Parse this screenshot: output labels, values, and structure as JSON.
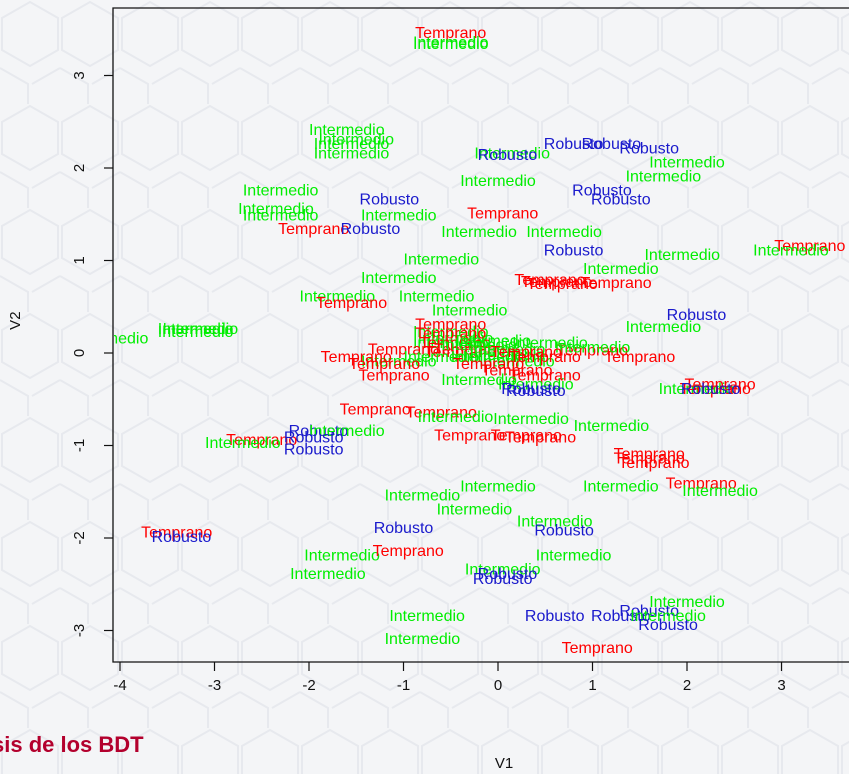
{
  "slide": {
    "caption": "sis de los BDT"
  },
  "colors": {
    "Temprano": "#ff0000",
    "Intermedio": "#00ee00",
    "Robusto": "#1a1acc",
    "background": "#f4f5f7",
    "axis": "#111111"
  },
  "chart_data": {
    "type": "scatter",
    "title": "",
    "xlabel": "V1",
    "ylabel": "V2",
    "xlim": [
      -4,
      3.6
    ],
    "ylim": [
      -3.4,
      3.7
    ],
    "xticks": [
      "-4",
      "-3",
      "-2",
      "-1",
      "0",
      "1",
      "2",
      "3"
    ],
    "yticks": [
      "-3",
      "-2",
      "-1",
      "0",
      "1",
      "2",
      "3"
    ],
    "grid": false,
    "legend": "none",
    "marker": "text label",
    "points": [
      {
        "x": -0.5,
        "y": 3.45,
        "label": "Temprano"
      },
      {
        "x": -0.5,
        "y": 3.35,
        "label": "Intermedio"
      },
      {
        "x": -0.5,
        "y": 3.33,
        "label": "Intermedio"
      },
      {
        "x": -1.6,
        "y": 2.4,
        "label": "Intermedio"
      },
      {
        "x": -1.5,
        "y": 2.3,
        "label": "Intermedio"
      },
      {
        "x": -1.55,
        "y": 2.25,
        "label": "Intermedio"
      },
      {
        "x": -1.55,
        "y": 2.15,
        "label": "Intermedio"
      },
      {
        "x": 0.8,
        "y": 2.25,
        "label": "Robusto"
      },
      {
        "x": 1.2,
        "y": 2.25,
        "label": "Robusto"
      },
      {
        "x": 1.6,
        "y": 2.2,
        "label": "Robusto"
      },
      {
        "x": 0.15,
        "y": 2.15,
        "label": "Intermedio"
      },
      {
        "x": 0.1,
        "y": 2.13,
        "label": "Robusto"
      },
      {
        "x": 2.0,
        "y": 2.05,
        "label": "Intermedio"
      },
      {
        "x": 1.75,
        "y": 1.9,
        "label": "Intermedio"
      },
      {
        "x": -2.3,
        "y": 1.75,
        "label": "Intermedio"
      },
      {
        "x": 0.0,
        "y": 1.85,
        "label": "Intermedio"
      },
      {
        "x": 1.1,
        "y": 1.75,
        "label": "Robusto"
      },
      {
        "x": -1.15,
        "y": 1.65,
        "label": "Robusto"
      },
      {
        "x": 1.3,
        "y": 1.65,
        "label": "Robusto"
      },
      {
        "x": -2.35,
        "y": 1.55,
        "label": "Intermedio"
      },
      {
        "x": -2.3,
        "y": 1.48,
        "label": "Intermedio"
      },
      {
        "x": -1.05,
        "y": 1.48,
        "label": "Intermedio"
      },
      {
        "x": 0.05,
        "y": 1.5,
        "label": "Temprano"
      },
      {
        "x": -1.95,
        "y": 1.33,
        "label": "Temprano"
      },
      {
        "x": -1.35,
        "y": 1.33,
        "label": "Robusto"
      },
      {
        "x": -0.2,
        "y": 1.3,
        "label": "Intermedio"
      },
      {
        "x": 0.7,
        "y": 1.3,
        "label": "Intermedio"
      },
      {
        "x": 0.8,
        "y": 1.1,
        "label": "Robusto"
      },
      {
        "x": -0.6,
        "y": 1.0,
        "label": "Intermedio"
      },
      {
        "x": 1.95,
        "y": 1.05,
        "label": "Intermedio"
      },
      {
        "x": 3.3,
        "y": 1.15,
        "label": "Temprano"
      },
      {
        "x": 3.1,
        "y": 1.1,
        "label": "Intermedio"
      },
      {
        "x": 1.3,
        "y": 0.9,
        "label": "Intermedio"
      },
      {
        "x": -1.05,
        "y": 0.8,
        "label": "Intermedio"
      },
      {
        "x": 0.55,
        "y": 0.78,
        "label": "Temprano"
      },
      {
        "x": 0.62,
        "y": 0.76,
        "label": "Temprano"
      },
      {
        "x": 0.68,
        "y": 0.74,
        "label": "Temprano"
      },
      {
        "x": 1.25,
        "y": 0.75,
        "label": "Temprano"
      },
      {
        "x": -1.7,
        "y": 0.6,
        "label": "Intermedio"
      },
      {
        "x": -0.65,
        "y": 0.6,
        "label": "Intermedio"
      },
      {
        "x": -1.55,
        "y": 0.53,
        "label": "Temprano"
      },
      {
        "x": -0.3,
        "y": 0.45,
        "label": "Intermedio"
      },
      {
        "x": 2.1,
        "y": 0.4,
        "label": "Robusto"
      },
      {
        "x": 1.75,
        "y": 0.27,
        "label": "Intermedio"
      },
      {
        "x": -4.1,
        "y": 0.15,
        "label": "Intermedio"
      },
      {
        "x": -3.2,
        "y": 0.25,
        "label": "Intermedio"
      },
      {
        "x": -3.2,
        "y": 0.22,
        "label": "Intermedio"
      },
      {
        "x": -3.15,
        "y": 0.25,
        "label": "Intermedio"
      },
      {
        "x": -0.5,
        "y": 0.22,
        "label": "Intermedio"
      },
      {
        "x": -0.45,
        "y": 0.15,
        "label": "Intermedio"
      },
      {
        "x": -0.5,
        "y": 0.1,
        "label": "Intermedio"
      },
      {
        "x": -0.5,
        "y": 0.3,
        "label": "Temprano"
      },
      {
        "x": -0.5,
        "y": 0.2,
        "label": "Temprano"
      },
      {
        "x": -0.45,
        "y": 0.1,
        "label": "Temprano"
      },
      {
        "x": -1.0,
        "y": 0.03,
        "label": "Temprano"
      },
      {
        "x": -0.3,
        "y": 0.03,
        "label": "Temprano"
      },
      {
        "x": -0.4,
        "y": 0.0,
        "label": "Temprano"
      },
      {
        "x": -0.2,
        "y": 0.08,
        "label": "Intermedio"
      },
      {
        "x": 0.1,
        "y": 0.03,
        "label": "Intermedio"
      },
      {
        "x": 0.1,
        "y": -0.03,
        "label": "Intermedio"
      },
      {
        "x": -0.1,
        "y": -0.05,
        "label": "Intermedio"
      },
      {
        "x": -0.05,
        "y": 0.12,
        "label": "Intermedio"
      },
      {
        "x": 0.2,
        "y": -0.1,
        "label": "Intermedio"
      },
      {
        "x": -0.6,
        "y": -0.05,
        "label": "Intermedio"
      },
      {
        "x": -1.05,
        "y": -0.1,
        "label": "Intermedio"
      },
      {
        "x": -1.5,
        "y": -0.05,
        "label": "Temprano"
      },
      {
        "x": -1.2,
        "y": -0.13,
        "label": "Temprano"
      },
      {
        "x": -0.1,
        "y": -0.13,
        "label": "Temprano"
      },
      {
        "x": 0.5,
        "y": -0.05,
        "label": "Temprano"
      },
      {
        "x": 1.0,
        "y": 0.02,
        "label": "Temprano"
      },
      {
        "x": 1.5,
        "y": -0.05,
        "label": "Temprano"
      },
      {
        "x": 1.0,
        "y": 0.05,
        "label": "Intermedio"
      },
      {
        "x": 0.55,
        "y": 0.1,
        "label": "Intermedio"
      },
      {
        "x": 0.3,
        "y": 0.0,
        "label": "Temprano"
      },
      {
        "x": -1.1,
        "y": -0.25,
        "label": "Temprano"
      },
      {
        "x": 0.2,
        "y": -0.2,
        "label": "Temprano"
      },
      {
        "x": 0.5,
        "y": -0.25,
        "label": "Temprano"
      },
      {
        "x": -0.2,
        "y": -0.3,
        "label": "Intermedio"
      },
      {
        "x": 0.4,
        "y": -0.35,
        "label": "Intermedio"
      },
      {
        "x": 0.35,
        "y": -0.4,
        "label": "Robusto"
      },
      {
        "x": 0.4,
        "y": -0.42,
        "label": "Robusto"
      },
      {
        "x": 2.1,
        "y": -0.4,
        "label": "Intermedio"
      },
      {
        "x": 2.3,
        "y": -0.4,
        "label": "Temprano"
      },
      {
        "x": 2.35,
        "y": -0.35,
        "label": "Temprano"
      },
      {
        "x": 2.25,
        "y": -0.4,
        "label": "Robusto"
      },
      {
        "x": -1.3,
        "y": -0.62,
        "label": "Temprano"
      },
      {
        "x": -0.6,
        "y": -0.65,
        "label": "Temprano"
      },
      {
        "x": -0.45,
        "y": -0.7,
        "label": "Intermedio"
      },
      {
        "x": 0.35,
        "y": -0.72,
        "label": "Intermedio"
      },
      {
        "x": 1.2,
        "y": -0.8,
        "label": "Intermedio"
      },
      {
        "x": -1.9,
        "y": -0.85,
        "label": "Robusto"
      },
      {
        "x": -1.6,
        "y": -0.85,
        "label": "Intermedio"
      },
      {
        "x": -2.5,
        "y": -0.95,
        "label": "Temprano"
      },
      {
        "x": -2.7,
        "y": -0.98,
        "label": "Intermedio"
      },
      {
        "x": -1.95,
        "y": -0.92,
        "label": "Robusto"
      },
      {
        "x": -1.95,
        "y": -1.05,
        "label": "Robusto"
      },
      {
        "x": -0.3,
        "y": -0.9,
        "label": "Temprano"
      },
      {
        "x": 0.3,
        "y": -0.9,
        "label": "Temprano"
      },
      {
        "x": 0.45,
        "y": -0.92,
        "label": "Temprano"
      },
      {
        "x": 1.6,
        "y": -1.1,
        "label": "Temprano"
      },
      {
        "x": 1.6,
        "y": -1.15,
        "label": "Temprano"
      },
      {
        "x": 1.65,
        "y": -1.2,
        "label": "Temprano"
      },
      {
        "x": 2.15,
        "y": -1.42,
        "label": "Temprano"
      },
      {
        "x": 2.35,
        "y": -1.5,
        "label": "Intermedio"
      },
      {
        "x": 1.3,
        "y": -1.45,
        "label": "Intermedio"
      },
      {
        "x": 0.0,
        "y": -1.45,
        "label": "Intermedio"
      },
      {
        "x": -0.8,
        "y": -1.55,
        "label": "Intermedio"
      },
      {
        "x": -0.25,
        "y": -1.7,
        "label": "Intermedio"
      },
      {
        "x": -1.0,
        "y": -1.9,
        "label": "Robusto"
      },
      {
        "x": 0.6,
        "y": -1.83,
        "label": "Intermedio"
      },
      {
        "x": 0.7,
        "y": -1.93,
        "label": "Robusto"
      },
      {
        "x": -3.4,
        "y": -1.95,
        "label": "Temprano"
      },
      {
        "x": -3.35,
        "y": -2.0,
        "label": "Robusto"
      },
      {
        "x": -1.65,
        "y": -2.2,
        "label": "Intermedio"
      },
      {
        "x": -0.95,
        "y": -2.15,
        "label": "Temprano"
      },
      {
        "x": 0.8,
        "y": -2.2,
        "label": "Intermedio"
      },
      {
        "x": -1.8,
        "y": -2.4,
        "label": "Intermedio"
      },
      {
        "x": 0.05,
        "y": -2.35,
        "label": "Intermedio"
      },
      {
        "x": 0.1,
        "y": -2.4,
        "label": "Robusto"
      },
      {
        "x": 0.05,
        "y": -2.45,
        "label": "Robusto"
      },
      {
        "x": 2.0,
        "y": -2.7,
        "label": "Intermedio"
      },
      {
        "x": -0.75,
        "y": -2.85,
        "label": "Intermedio"
      },
      {
        "x": 0.6,
        "y": -2.85,
        "label": "Robusto"
      },
      {
        "x": 1.3,
        "y": -2.85,
        "label": "Robusto"
      },
      {
        "x": 1.6,
        "y": -2.8,
        "label": "Robusto"
      },
      {
        "x": 1.8,
        "y": -2.85,
        "label": "Intermedio"
      },
      {
        "x": 1.8,
        "y": -2.95,
        "label": "Robusto"
      },
      {
        "x": -0.8,
        "y": -3.1,
        "label": "Intermedio"
      },
      {
        "x": 1.05,
        "y": -3.2,
        "label": "Temprano"
      }
    ]
  }
}
